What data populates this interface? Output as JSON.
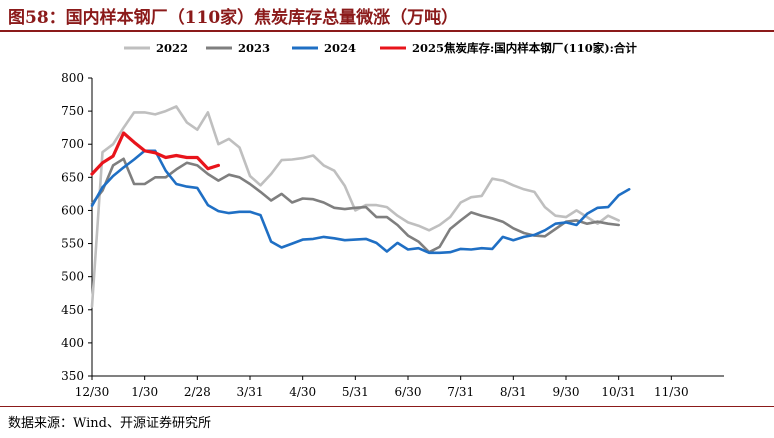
{
  "header": {
    "title": "图58：国内样本钢厂（110家）焦炭库存总量微涨（万吨）"
  },
  "footer": {
    "source": "数据来源：Wind、开源证券研究所"
  },
  "colors": {
    "accent": "#8b1a1a"
  },
  "chart_data": {
    "type": "line",
    "title": "图58：国内样本钢厂（110家）焦炭库存总量微涨（万吨）",
    "xlabel": "",
    "ylabel": "",
    "ylim": [
      350,
      800
    ],
    "yticks": [
      350,
      400,
      450,
      500,
      550,
      600,
      650,
      700,
      750,
      800
    ],
    "xlim": [
      0,
      12
    ],
    "xtick_labels": [
      "12/30",
      "1/30",
      "2/28",
      "3/31",
      "4/30",
      "5/31",
      "6/30",
      "7/31",
      "8/31",
      "9/30",
      "10/31",
      "11/30"
    ],
    "grid": false,
    "legend_position": "top",
    "series": [
      {
        "name": "2022",
        "color": "#bfbfbf",
        "points": [
          [
            0,
            455
          ],
          [
            0.2,
            688
          ],
          [
            0.4,
            700
          ],
          [
            0.6,
            725
          ],
          [
            0.8,
            748
          ],
          [
            1.0,
            748
          ],
          [
            1.2,
            745
          ],
          [
            1.4,
            750
          ],
          [
            1.6,
            757
          ],
          [
            1.8,
            733
          ],
          [
            2.0,
            722
          ],
          [
            2.2,
            748
          ],
          [
            2.4,
            700
          ],
          [
            2.6,
            708
          ],
          [
            2.8,
            695
          ],
          [
            3.0,
            652
          ],
          [
            3.2,
            638
          ],
          [
            3.4,
            655
          ],
          [
            3.6,
            676
          ],
          [
            3.8,
            677
          ],
          [
            4.0,
            679
          ],
          [
            4.2,
            683
          ],
          [
            4.4,
            668
          ],
          [
            4.6,
            660
          ],
          [
            4.8,
            637
          ],
          [
            5.0,
            600
          ],
          [
            5.2,
            608
          ],
          [
            5.4,
            608
          ],
          [
            5.6,
            605
          ],
          [
            5.8,
            592
          ],
          [
            6.0,
            582
          ],
          [
            6.2,
            577
          ],
          [
            6.4,
            570
          ],
          [
            6.6,
            578
          ],
          [
            6.8,
            590
          ],
          [
            7.0,
            612
          ],
          [
            7.2,
            620
          ],
          [
            7.4,
            622
          ],
          [
            7.6,
            648
          ],
          [
            7.8,
            645
          ],
          [
            8.0,
            638
          ],
          [
            8.2,
            632
          ],
          [
            8.4,
            628
          ],
          [
            8.6,
            605
          ],
          [
            8.8,
            592
          ],
          [
            9.0,
            590
          ],
          [
            9.2,
            600
          ],
          [
            9.4,
            590
          ],
          [
            9.6,
            580
          ],
          [
            9.8,
            592
          ],
          [
            10.0,
            585
          ]
        ]
      },
      {
        "name": "2023",
        "color": "#7f7f7f",
        "points": [
          [
            0,
            610
          ],
          [
            0.2,
            630
          ],
          [
            0.4,
            668
          ],
          [
            0.6,
            678
          ],
          [
            0.8,
            640
          ],
          [
            1.0,
            640
          ],
          [
            1.2,
            650
          ],
          [
            1.4,
            650
          ],
          [
            1.6,
            662
          ],
          [
            1.8,
            672
          ],
          [
            2.0,
            668
          ],
          [
            2.2,
            655
          ],
          [
            2.4,
            645
          ],
          [
            2.6,
            654
          ],
          [
            2.8,
            650
          ],
          [
            3.0,
            640
          ],
          [
            3.2,
            628
          ],
          [
            3.4,
            615
          ],
          [
            3.6,
            625
          ],
          [
            3.8,
            612
          ],
          [
            4.0,
            618
          ],
          [
            4.2,
            617
          ],
          [
            4.4,
            612
          ],
          [
            4.6,
            604
          ],
          [
            4.8,
            602
          ],
          [
            5.0,
            604
          ],
          [
            5.2,
            605
          ],
          [
            5.4,
            590
          ],
          [
            5.6,
            590
          ],
          [
            5.8,
            578
          ],
          [
            6.0,
            562
          ],
          [
            6.2,
            553
          ],
          [
            6.4,
            537
          ],
          [
            6.6,
            545
          ],
          [
            6.8,
            572
          ],
          [
            7.0,
            585
          ],
          [
            7.2,
            597
          ],
          [
            7.4,
            592
          ],
          [
            7.6,
            588
          ],
          [
            7.8,
            583
          ],
          [
            8.0,
            573
          ],
          [
            8.2,
            566
          ],
          [
            8.4,
            562
          ],
          [
            8.6,
            561
          ],
          [
            8.8,
            572
          ],
          [
            9.0,
            583
          ],
          [
            9.2,
            585
          ],
          [
            9.4,
            580
          ],
          [
            9.6,
            583
          ],
          [
            9.8,
            580
          ],
          [
            10.0,
            578
          ]
        ]
      },
      {
        "name": "2024",
        "color": "#1f6fc4",
        "points": [
          [
            0,
            607
          ],
          [
            0.2,
            635
          ],
          [
            0.4,
            652
          ],
          [
            0.6,
            665
          ],
          [
            0.8,
            677
          ],
          [
            1.0,
            690
          ],
          [
            1.2,
            690
          ],
          [
            1.4,
            660
          ],
          [
            1.6,
            640
          ],
          [
            1.8,
            636
          ],
          [
            2.0,
            634
          ],
          [
            2.2,
            608
          ],
          [
            2.4,
            599
          ],
          [
            2.6,
            596
          ],
          [
            2.8,
            598
          ],
          [
            3.0,
            598
          ],
          [
            3.2,
            593
          ],
          [
            3.4,
            553
          ],
          [
            3.6,
            544
          ],
          [
            3.8,
            550
          ],
          [
            4.0,
            556
          ],
          [
            4.2,
            557
          ],
          [
            4.4,
            560
          ],
          [
            4.6,
            558
          ],
          [
            4.8,
            555
          ],
          [
            5.0,
            556
          ],
          [
            5.2,
            557
          ],
          [
            5.4,
            551
          ],
          [
            5.6,
            538
          ],
          [
            5.8,
            551
          ],
          [
            6.0,
            541
          ],
          [
            6.2,
            543
          ],
          [
            6.4,
            536
          ],
          [
            6.6,
            536
          ],
          [
            6.8,
            537
          ],
          [
            7.0,
            542
          ],
          [
            7.2,
            541
          ],
          [
            7.4,
            543
          ],
          [
            7.6,
            542
          ],
          [
            7.8,
            560
          ],
          [
            8.0,
            555
          ],
          [
            8.2,
            560
          ],
          [
            8.4,
            563
          ],
          [
            8.6,
            570
          ],
          [
            8.8,
            580
          ],
          [
            9.0,
            582
          ],
          [
            9.2,
            578
          ],
          [
            9.4,
            595
          ],
          [
            9.6,
            604
          ],
          [
            9.8,
            605
          ],
          [
            10.0,
            623
          ],
          [
            10.2,
            632
          ]
        ]
      },
      {
        "name": "2025焦炭库存:国内样本钢厂(110家):合计",
        "color": "#e8141b",
        "points": [
          [
            0,
            655
          ],
          [
            0.2,
            672
          ],
          [
            0.4,
            682
          ],
          [
            0.6,
            717
          ],
          [
            0.8,
            703
          ],
          [
            1.0,
            690
          ],
          [
            1.2,
            687
          ],
          [
            1.4,
            680
          ],
          [
            1.6,
            683
          ],
          [
            1.8,
            680
          ],
          [
            2.0,
            680
          ],
          [
            2.2,
            663
          ],
          [
            2.4,
            668
          ]
        ]
      }
    ]
  }
}
